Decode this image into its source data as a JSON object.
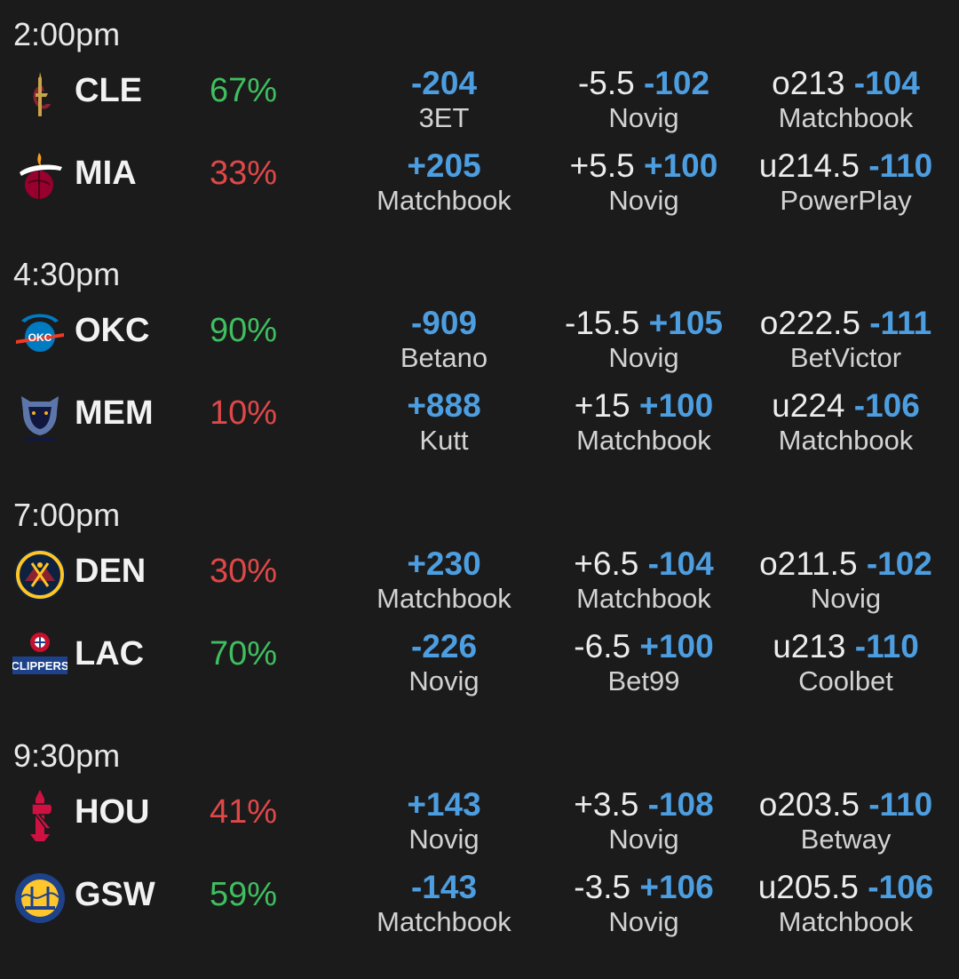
{
  "games": [
    {
      "time": "2:00pm",
      "teams": [
        {
          "abbr": "CLE",
          "logo": "cavaliers-logo",
          "pct": "67%",
          "fav": true,
          "ml": "-204",
          "ml_book": "3ET",
          "spread_line": "-5.5",
          "spread_price": "-102",
          "spread_book": "Novig",
          "total_line": "o213",
          "total_price": "-104",
          "total_book": "Matchbook"
        },
        {
          "abbr": "MIA",
          "logo": "heat-logo",
          "pct": "33%",
          "fav": false,
          "ml": "+205",
          "ml_book": "Matchbook",
          "spread_line": "+5.5",
          "spread_price": "+100",
          "spread_book": "Novig",
          "total_line": "u214.5",
          "total_price": "-110",
          "total_book": "PowerPlay"
        }
      ]
    },
    {
      "time": "4:30pm",
      "teams": [
        {
          "abbr": "OKC",
          "logo": "thunder-logo",
          "pct": "90%",
          "fav": true,
          "ml": "-909",
          "ml_book": "Betano",
          "spread_line": "-15.5",
          "spread_price": "+105",
          "spread_book": "Novig",
          "total_line": "o222.5",
          "total_price": "-111",
          "total_book": "BetVictor"
        },
        {
          "abbr": "MEM",
          "logo": "grizzlies-logo",
          "pct": "10%",
          "fav": false,
          "ml": "+888",
          "ml_book": "Kutt",
          "spread_line": "+15",
          "spread_price": "+100",
          "spread_book": "Matchbook",
          "total_line": "u224",
          "total_price": "-106",
          "total_book": "Matchbook"
        }
      ]
    },
    {
      "time": "7:00pm",
      "teams": [
        {
          "abbr": "DEN",
          "logo": "nuggets-logo",
          "pct": "30%",
          "fav": false,
          "ml": "+230",
          "ml_book": "Matchbook",
          "spread_line": "+6.5",
          "spread_price": "-104",
          "spread_book": "Matchbook",
          "total_line": "o211.5",
          "total_price": "-102",
          "total_book": "Novig"
        },
        {
          "abbr": "LAC",
          "logo": "clippers-logo",
          "pct": "70%",
          "fav": true,
          "ml": "-226",
          "ml_book": "Novig",
          "spread_line": "-6.5",
          "spread_price": "+100",
          "spread_book": "Bet99",
          "total_line": "u213",
          "total_price": "-110",
          "total_book": "Coolbet"
        }
      ]
    },
    {
      "time": "9:30pm",
      "teams": [
        {
          "abbr": "HOU",
          "logo": "rockets-logo",
          "pct": "41%",
          "fav": false,
          "ml": "+143",
          "ml_book": "Novig",
          "spread_line": "+3.5",
          "spread_price": "-108",
          "spread_book": "Novig",
          "total_line": "o203.5",
          "total_price": "-110",
          "total_book": "Betway"
        },
        {
          "abbr": "GSW",
          "logo": "warriors-logo",
          "pct": "59%",
          "fav": true,
          "ml": "-143",
          "ml_book": "Matchbook",
          "spread_line": "-3.5",
          "spread_price": "+106",
          "spread_book": "Novig",
          "total_line": "u205.5",
          "total_price": "-106",
          "total_book": "Matchbook"
        }
      ]
    }
  ],
  "colors": {
    "background": "#1b1b1c",
    "price_blue": "#4d9ee0",
    "favorite_green": "#3fbf5f",
    "underdog_red": "#e04848"
  }
}
